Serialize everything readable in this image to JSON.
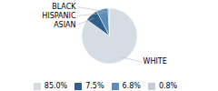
{
  "chart_data": {
    "type": "pie",
    "categories": [
      "WHITE",
      "ASIAN",
      "HISPANIC",
      "BLACK"
    ],
    "values": [
      85.0,
      7.5,
      6.8,
      0.8
    ],
    "value_labels": [
      "85.0%",
      "7.5%",
      "6.8%",
      "0.8%"
    ],
    "colors": [
      "#d6dce4",
      "#2e5f8a",
      "#5b8db8",
      "#c5cdd6"
    ],
    "legend": "bottom"
  }
}
